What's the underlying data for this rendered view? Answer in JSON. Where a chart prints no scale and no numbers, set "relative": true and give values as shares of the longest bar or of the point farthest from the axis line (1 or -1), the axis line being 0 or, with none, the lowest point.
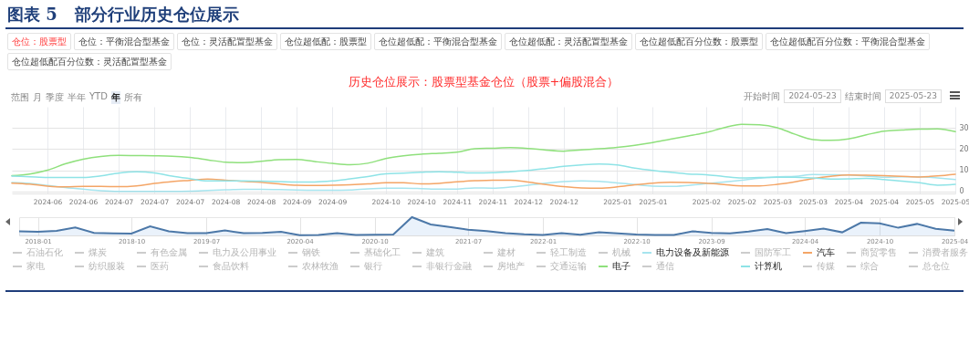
{
  "chart_data": [
    {
      "type": "line",
      "title": "图表 5   部分行业历史仓位展示",
      "subtitle": "历史仓位展示：股票型基金仓位（股票+偏股混合）",
      "annotations": [
        "仓位：股票型",
        "仓位：平衡混合型基金",
        "仓位：灵活配置型基金",
        "仓位超低配：股票型",
        "仓位超低配：平衡混合型基金",
        "仓位超低配：灵活配置型基金",
        "仓位超低配百分位数：股票型",
        "仓位超低配百分位数：平衡混合型基金",
        "仓位超低配百分位数：灵活配置型基金",
        "范围",
        "月",
        "季度",
        "半年",
        "YTD",
        "年",
        "所有",
        "开始时间",
        "2024-05-23",
        "结束时间",
        "2025-05-23"
      ],
      "categories": [
        null,
        null,
        "2024-06",
        null,
        "2024-06",
        null,
        "2024-07",
        null,
        "2024-07",
        null,
        "2024-07",
        null,
        "2024-08",
        null,
        "2024-08",
        null,
        "2024-09",
        null,
        "2024-09",
        null,
        null,
        "2024-10",
        null,
        "2024-10",
        null,
        "2024-11",
        null,
        "2024-11",
        null,
        "2024-12",
        null,
        "2024-12",
        null,
        null,
        "2025-01",
        null,
        "2025-01",
        null,
        null,
        "2025-02",
        null,
        "2025-02",
        null,
        "2025-03",
        null,
        "2025-03",
        null,
        "2025-04",
        null,
        "2025-04",
        null,
        "2025-05",
        null,
        "2025-05"
      ],
      "ylim": [
        -1,
        40
      ],
      "yticks": [
        0,
        10,
        20,
        30
      ],
      "grid": true,
      "legend": "bottom",
      "series": [
        {
          "name": "石油石化",
          "color": "#cccccc",
          "values": [
            null,
            null,
            null,
            null,
            null,
            null,
            null,
            null,
            null,
            null,
            null,
            null,
            null,
            null,
            null,
            null,
            null,
            null,
            null,
            null,
            null,
            null,
            null,
            null,
            null,
            null,
            null,
            null,
            null,
            null,
            null,
            null,
            null,
            null,
            null,
            null,
            null,
            null,
            null,
            null,
            null,
            null,
            null,
            null,
            null,
            null,
            null,
            null,
            null,
            null,
            null,
            null,
            null,
            null
          ]
        },
        {
          "name": "煤炭",
          "color": "#cccccc",
          "values": [
            null,
            null,
            null,
            null,
            null,
            null,
            null,
            null,
            null,
            null,
            null,
            null,
            null,
            null,
            null,
            null,
            null,
            null,
            null,
            null,
            null,
            null,
            null,
            null,
            null,
            null,
            null,
            null,
            null,
            null,
            null,
            null,
            null,
            null,
            null,
            null,
            null,
            null,
            null,
            null,
            null,
            null,
            null,
            null,
            null,
            null,
            null,
            null,
            null,
            null,
            null,
            null,
            null,
            null
          ]
        },
        {
          "name": "有色金属",
          "color": "#cccccc",
          "values": [
            null,
            null,
            null,
            null,
            null,
            null,
            null,
            null,
            null,
            null,
            null,
            null,
            null,
            null,
            null,
            null,
            null,
            null,
            null,
            null,
            null,
            null,
            null,
            null,
            null,
            null,
            null,
            null,
            null,
            null,
            null,
            null,
            null,
            null,
            null,
            null,
            null,
            null,
            null,
            null,
            null,
            null,
            null,
            null,
            null,
            null,
            null,
            null,
            null,
            null,
            null,
            null,
            null,
            null
          ]
        },
        {
          "name": "电力及公用事业",
          "color": "#cccccc",
          "values": [
            null,
            null,
            null,
            null,
            null,
            null,
            null,
            null,
            null,
            null,
            null,
            null,
            null,
            null,
            null,
            null,
            null,
            null,
            null,
            null,
            null,
            null,
            null,
            null,
            null,
            null,
            null,
            null,
            null,
            null,
            null,
            null,
            null,
            null,
            null,
            null,
            null,
            null,
            null,
            null,
            null,
            null,
            null,
            null,
            null,
            null,
            null,
            null,
            null,
            null,
            null,
            null,
            null,
            null
          ]
        },
        {
          "name": "钢铁",
          "color": "#cccccc",
          "values": [
            null,
            null,
            null,
            null,
            null,
            null,
            null,
            null,
            null,
            null,
            null,
            null,
            null,
            null,
            null,
            null,
            null,
            null,
            null,
            null,
            null,
            null,
            null,
            null,
            null,
            null,
            null,
            null,
            null,
            null,
            null,
            null,
            null,
            null,
            null,
            null,
            null,
            null,
            null,
            null,
            null,
            null,
            null,
            null,
            null,
            null,
            null,
            null,
            null,
            null,
            null,
            null,
            null,
            null
          ]
        },
        {
          "name": "基础化工",
          "color": "#cccccc",
          "values": [
            null,
            null,
            null,
            null,
            null,
            null,
            null,
            null,
            null,
            null,
            null,
            null,
            null,
            null,
            null,
            null,
            null,
            null,
            null,
            null,
            null,
            null,
            null,
            null,
            null,
            null,
            null,
            null,
            null,
            null,
            null,
            null,
            null,
            null,
            null,
            null,
            null,
            null,
            null,
            null,
            null,
            null,
            null,
            null,
            null,
            null,
            null,
            null,
            null,
            null,
            null,
            null,
            null,
            null
          ]
        },
        {
          "name": "建筑",
          "color": "#cccccc",
          "values": [
            null,
            null,
            null,
            null,
            null,
            null,
            null,
            null,
            null,
            null,
            null,
            null,
            null,
            null,
            null,
            null,
            null,
            null,
            null,
            null,
            null,
            null,
            null,
            null,
            null,
            null,
            null,
            null,
            null,
            null,
            null,
            null,
            null,
            null,
            null,
            null,
            null,
            null,
            null,
            null,
            null,
            null,
            null,
            null,
            null,
            null,
            null,
            null,
            null,
            null,
            null,
            null,
            null,
            null
          ]
        },
        {
          "name": "建材",
          "color": "#cccccc",
          "values": [
            null,
            null,
            null,
            null,
            null,
            null,
            null,
            null,
            null,
            null,
            null,
            null,
            null,
            null,
            null,
            null,
            null,
            null,
            null,
            null,
            null,
            null,
            null,
            null,
            null,
            null,
            null,
            null,
            null,
            null,
            null,
            null,
            null,
            null,
            null,
            null,
            null,
            null,
            null,
            null,
            null,
            null,
            null,
            null,
            null,
            null,
            null,
            null,
            null,
            null,
            null,
            null,
            null,
            null
          ]
        },
        {
          "name": "轻工制造",
          "color": "#cccccc",
          "values": [
            null,
            null,
            null,
            null,
            null,
            null,
            null,
            null,
            null,
            null,
            null,
            null,
            null,
            null,
            null,
            null,
            null,
            null,
            null,
            null,
            null,
            null,
            null,
            null,
            null,
            null,
            null,
            null,
            null,
            null,
            null,
            null,
            null,
            null,
            null,
            null,
            null,
            null,
            null,
            null,
            null,
            null,
            null,
            null,
            null,
            null,
            null,
            null,
            null,
            null,
            null,
            null,
            null,
            null
          ]
        },
        {
          "name": "机械",
          "color": "#cccccc",
          "values": [
            null,
            null,
            null,
            null,
            null,
            null,
            null,
            null,
            null,
            null,
            null,
            null,
            null,
            null,
            null,
            null,
            null,
            null,
            null,
            null,
            null,
            null,
            null,
            null,
            null,
            null,
            null,
            null,
            null,
            null,
            null,
            null,
            null,
            null,
            null,
            null,
            null,
            null,
            null,
            null,
            null,
            null,
            null,
            null,
            null,
            null,
            null,
            null,
            null,
            null,
            null,
            null,
            null,
            null
          ]
        },
        {
          "name": "电力设备及新能源",
          "color": "#a6e4ee",
          "values": [
            4.2,
            3.8,
            2.8,
            1.8,
            1.0,
            0.3,
            0,
            0,
            0,
            0,
            0.1,
            0.4,
            0.7,
            0.9,
            0.9,
            0.8,
            0.6,
            0.5,
            0.5,
            0.6,
            1.2,
            1.5,
            1.5,
            1.3,
            1.0,
            1.1,
            1.6,
            1.5,
            2.0,
            2.9,
            3.9,
            4.6,
            4.9,
            4.7,
            4.0,
            3.2,
            2.5,
            2.3,
            2.8,
            3.6,
            4.4,
            5.3,
            6.2,
            6.9,
            7.1,
            8.0,
            7.9,
            7.7,
            7.2,
            6.7,
            6.9,
            6.9,
            6.3,
            5.6
          ]
        },
        {
          "name": "国防军工",
          "color": "#cccccc",
          "values": [
            null,
            null,
            null,
            null,
            null,
            null,
            null,
            null,
            null,
            null,
            null,
            null,
            null,
            null,
            null,
            null,
            null,
            null,
            null,
            null,
            null,
            null,
            null,
            null,
            null,
            null,
            null,
            null,
            null,
            null,
            null,
            null,
            null,
            null,
            null,
            null,
            null,
            null,
            null,
            null,
            null,
            null,
            null,
            null,
            null,
            null,
            null,
            null,
            null,
            null,
            null,
            null,
            null,
            null
          ]
        },
        {
          "name": "汽车",
          "color": "#f4a566",
          "values": [
            3.9,
            3.4,
            2.5,
            2.1,
            2.3,
            2.3,
            2.2,
            2.6,
            3.7,
            4.6,
            5.2,
            5.8,
            5.3,
            4.7,
            4.3,
            3.5,
            2.9,
            2.8,
            2.9,
            3.1,
            3.5,
            4.1,
            4.1,
            3.5,
            3.8,
            4.5,
            5.0,
            5.3,
            5.3,
            4.4,
            3.2,
            2.2,
            1.6,
            1.5,
            2.1,
            3.1,
            3.9,
            4.3,
            4.2,
            3.9,
            3.2,
            2.6,
            2.6,
            3.3,
            4.5,
            6.0,
            7.1,
            7.7,
            7.6,
            7.4,
            7.1,
            6.8,
            7.3,
            8.1
          ]
        },
        {
          "name": "商贸零售",
          "color": "#cccccc",
          "values": [
            null,
            null,
            null,
            null,
            null,
            null,
            null,
            null,
            null,
            null,
            null,
            null,
            null,
            null,
            null,
            null,
            null,
            null,
            null,
            null,
            null,
            null,
            null,
            null,
            null,
            null,
            null,
            null,
            null,
            null,
            null,
            null,
            null,
            null,
            null,
            null,
            null,
            null,
            null,
            null,
            null,
            null,
            null,
            null,
            null,
            null,
            null,
            null,
            null,
            null,
            null,
            null,
            null,
            null
          ]
        },
        {
          "name": "消费者服务",
          "color": "#cccccc",
          "values": [
            null,
            null,
            null,
            null,
            null,
            null,
            null,
            null,
            null,
            null,
            null,
            null,
            null,
            null,
            null,
            null,
            null,
            null,
            null,
            null,
            null,
            null,
            null,
            null,
            null,
            null,
            null,
            null,
            null,
            null,
            null,
            null,
            null,
            null,
            null,
            null,
            null,
            null,
            null,
            null,
            null,
            null,
            null,
            null,
            null,
            null,
            null,
            null,
            null,
            null,
            null,
            null,
            null,
            null
          ]
        },
        {
          "name": "家电",
          "color": "#cccccc",
          "values": [
            null,
            null,
            null,
            null,
            null,
            null,
            null,
            null,
            null,
            null,
            null,
            null,
            null,
            null,
            null,
            null,
            null,
            null,
            null,
            null,
            null,
            null,
            null,
            null,
            null,
            null,
            null,
            null,
            null,
            null,
            null,
            null,
            null,
            null,
            null,
            null,
            null,
            null,
            null,
            null,
            null,
            null,
            null,
            null,
            null,
            null,
            null,
            null,
            null,
            null,
            null,
            null,
            null,
            null
          ]
        },
        {
          "name": "纺织服装",
          "color": "#cccccc",
          "values": [
            null,
            null,
            null,
            null,
            null,
            null,
            null,
            null,
            null,
            null,
            null,
            null,
            null,
            null,
            null,
            null,
            null,
            null,
            null,
            null,
            null,
            null,
            null,
            null,
            null,
            null,
            null,
            null,
            null,
            null,
            null,
            null,
            null,
            null,
            null,
            null,
            null,
            null,
            null,
            null,
            null,
            null,
            null,
            null,
            null,
            null,
            null,
            null,
            null,
            null,
            null,
            null,
            null,
            null
          ]
        },
        {
          "name": "医药",
          "color": "#cccccc",
          "values": [
            null,
            null,
            null,
            null,
            null,
            null,
            null,
            null,
            null,
            null,
            null,
            null,
            null,
            null,
            null,
            null,
            null,
            null,
            null,
            null,
            null,
            null,
            null,
            null,
            null,
            null,
            null,
            null,
            null,
            null,
            null,
            null,
            null,
            null,
            null,
            null,
            null,
            null,
            null,
            null,
            null,
            null,
            null,
            null,
            null,
            null,
            null,
            null,
            null,
            null,
            null,
            null,
            null,
            null
          ]
        },
        {
          "name": "食品饮料",
          "color": "#cccccc",
          "values": [
            null,
            null,
            null,
            null,
            null,
            null,
            null,
            null,
            null,
            null,
            null,
            null,
            null,
            null,
            null,
            null,
            null,
            null,
            null,
            null,
            null,
            null,
            null,
            null,
            null,
            null,
            null,
            null,
            null,
            null,
            null,
            null,
            null,
            null,
            null,
            null,
            null,
            null,
            null,
            null,
            null,
            null,
            null,
            null,
            null,
            null,
            null,
            null,
            null,
            null,
            null,
            null,
            null,
            null
          ]
        },
        {
          "name": "农林牧渔",
          "color": "#cccccc",
          "values": [
            null,
            null,
            null,
            null,
            null,
            null,
            null,
            null,
            null,
            null,
            null,
            null,
            null,
            null,
            null,
            null,
            null,
            null,
            null,
            null,
            null,
            null,
            null,
            null,
            null,
            null,
            null,
            null,
            null,
            null,
            null,
            null,
            null,
            null,
            null,
            null,
            null,
            null,
            null,
            null,
            null,
            null,
            null,
            null,
            null,
            null,
            null,
            null,
            null,
            null,
            null,
            null,
            null,
            null
          ]
        },
        {
          "name": "银行",
          "color": "#cccccc",
          "values": [
            null,
            null,
            null,
            null,
            null,
            null,
            null,
            null,
            null,
            null,
            null,
            null,
            null,
            null,
            null,
            null,
            null,
            null,
            null,
            null,
            null,
            null,
            null,
            null,
            null,
            null,
            null,
            null,
            null,
            null,
            null,
            null,
            null,
            null,
            null,
            null,
            null,
            null,
            null,
            null,
            null,
            null,
            null,
            null,
            null,
            null,
            null,
            null,
            null,
            null,
            null,
            null,
            null,
            null
          ]
        },
        {
          "name": "非银行金融",
          "color": "#cccccc",
          "values": [
            null,
            null,
            null,
            null,
            null,
            null,
            null,
            null,
            null,
            null,
            null,
            null,
            null,
            null,
            null,
            null,
            null,
            null,
            null,
            null,
            null,
            null,
            null,
            null,
            null,
            null,
            null,
            null,
            null,
            null,
            null,
            null,
            null,
            null,
            null,
            null,
            null,
            null,
            null,
            null,
            null,
            null,
            null,
            null,
            null,
            null,
            null,
            null,
            null,
            null,
            null,
            null,
            null,
            null
          ]
        },
        {
          "name": "房地产",
          "color": "#cccccc",
          "values": [
            null,
            null,
            null,
            null,
            null,
            null,
            null,
            null,
            null,
            null,
            null,
            null,
            null,
            null,
            null,
            null,
            null,
            null,
            null,
            null,
            null,
            null,
            null,
            null,
            null,
            null,
            null,
            null,
            null,
            null,
            null,
            null,
            null,
            null,
            null,
            null,
            null,
            null,
            null,
            null,
            null,
            null,
            null,
            null,
            null,
            null,
            null,
            null,
            null,
            null,
            null,
            null,
            null,
            null
          ]
        },
        {
          "name": "交通运输",
          "color": "#cccccc",
          "values": [
            null,
            null,
            null,
            null,
            null,
            null,
            null,
            null,
            null,
            null,
            null,
            null,
            null,
            null,
            null,
            null,
            null,
            null,
            null,
            null,
            null,
            null,
            null,
            null,
            null,
            null,
            null,
            null,
            null,
            null,
            null,
            null,
            null,
            null,
            null,
            null,
            null,
            null,
            null,
            null,
            null,
            null,
            null,
            null,
            null,
            null,
            null,
            null,
            null,
            null,
            null,
            null,
            null,
            null
          ]
        },
        {
          "name": "电子",
          "color": "#8fe07c",
          "values": [
            7.4,
            8.2,
            10.0,
            13.0,
            15.2,
            16.5,
            17.0,
            16.9,
            16.8,
            16.6,
            16.0,
            14.9,
            13.8,
            13.6,
            14.2,
            15.0,
            15.1,
            14.1,
            13.2,
            12.6,
            13.3,
            15.5,
            16.8,
            17.6,
            18.0,
            18.5,
            20.1,
            20.4,
            20.7,
            20.3,
            19.5,
            19.0,
            19.6,
            20.1,
            20.8,
            21.8,
            23.1,
            24.7,
            26.2,
            27.8,
            30.1,
            31.7,
            31.5,
            30.1,
            27.0,
            24.5,
            24.1,
            24.8,
            26.7,
            28.5,
            29.0,
            29.4,
            29.5,
            28.2
          ]
        },
        {
          "name": "通信",
          "color": "#cccccc",
          "values": [
            null,
            null,
            null,
            null,
            null,
            null,
            null,
            null,
            null,
            null,
            null,
            null,
            null,
            null,
            null,
            null,
            null,
            null,
            null,
            null,
            null,
            null,
            null,
            null,
            null,
            null,
            null,
            null,
            null,
            null,
            null,
            null,
            null,
            null,
            null,
            null,
            null,
            null,
            null,
            null,
            null,
            null,
            null,
            null,
            null,
            null,
            null,
            null,
            null,
            null,
            null,
            null,
            null,
            null
          ]
        },
        {
          "name": "计算机",
          "color": "#8ee3e6",
          "values": [
            7.2,
            6.9,
            6.6,
            6.5,
            6.5,
            7.3,
            8.6,
            9.2,
            8.7,
            7.2,
            6.0,
            4.9,
            4.9,
            4.9,
            4.8,
            4.6,
            4.4,
            4.4,
            4.9,
            5.9,
            7.0,
            8.3,
            8.6,
            9.0,
            9.3,
            9.0,
            8.7,
            8.8,
            9.3,
            9.9,
            10.8,
            11.8,
            12.5,
            12.9,
            12.5,
            11.0,
            9.9,
            9.0,
            8.2,
            7.9,
            7.0,
            6.3,
            6.5,
            6.7,
            6.7,
            6.3,
            5.8,
            5.9,
            6.1,
            5.6,
            4.8,
            4.1,
            2.9,
            3.3
          ]
        },
        {
          "name": "传媒",
          "color": "#cccccc",
          "values": [
            null,
            null,
            null,
            null,
            null,
            null,
            null,
            null,
            null,
            null,
            null,
            null,
            null,
            null,
            null,
            null,
            null,
            null,
            null,
            null,
            null,
            null,
            null,
            null,
            null,
            null,
            null,
            null,
            null,
            null,
            null,
            null,
            null,
            null,
            null,
            null,
            null,
            null,
            null,
            null,
            null,
            null,
            null,
            null,
            null,
            null,
            null,
            null,
            null,
            null,
            null,
            null,
            null,
            null
          ]
        },
        {
          "name": "综合",
          "color": "#cccccc",
          "values": [
            null,
            null,
            null,
            null,
            null,
            null,
            null,
            null,
            null,
            null,
            null,
            null,
            null,
            null,
            null,
            null,
            null,
            null,
            null,
            null,
            null,
            null,
            null,
            null,
            null,
            null,
            null,
            null,
            null,
            null,
            null,
            null,
            null,
            null,
            null,
            null,
            null,
            null,
            null,
            null,
            null,
            null,
            null,
            null,
            null,
            null,
            null,
            null,
            null,
            null,
            null,
            null,
            null,
            null
          ]
        },
        {
          "name": "总仓位",
          "color": "#cccccc",
          "values": [
            null,
            null,
            null,
            null,
            null,
            null,
            null,
            null,
            null,
            null,
            null,
            null,
            null,
            null,
            null,
            null,
            null,
            null,
            null,
            null,
            null,
            null,
            null,
            null,
            null,
            null,
            null,
            null,
            null,
            null,
            null,
            null,
            null,
            null,
            null,
            null,
            null,
            null,
            null,
            null,
            null,
            null,
            null,
            null,
            null,
            null,
            null,
            null,
            null,
            null,
            null,
            null,
            null,
            null
          ]
        }
      ]
    },
    {
      "type": "area",
      "relative": true,
      "grid": "x",
      "color": "#8db8e8",
      "categories": [
        null,
        "2018-01",
        null,
        null,
        null,
        null,
        "2018-10",
        null,
        null,
        null,
        "2019-07",
        null,
        null,
        null,
        null,
        "2020-04",
        null,
        null,
        null,
        "2020-10",
        null,
        null,
        null,
        null,
        "2021-07",
        null,
        null,
        null,
        "2022-01",
        null,
        null,
        null,
        null,
        "2022-10",
        null,
        null,
        null,
        "2023-09",
        null,
        null,
        null,
        null,
        "2024-04",
        null,
        null,
        null,
        "2024-10",
        null,
        null,
        null,
        "2025-04"
      ],
      "values": [
        0.23,
        0.2,
        0.25,
        0.44,
        0.14,
        0.11,
        0.1,
        0.5,
        0.23,
        0.13,
        0.12,
        0.27,
        0.12,
        0.14,
        0.2,
        0.01,
        0.03,
        0.12,
        0.02,
        0.04,
        0.05,
        1.0,
        0.6,
        0.46,
        0.31,
        0.24,
        0.12,
        0.06,
        0.03,
        0.12,
        0.04,
        0.18,
        0.11,
        0.05,
        0.03,
        0.02,
        0.23,
        0.14,
        0.11,
        0.21,
        0.35,
        0.12,
        0.24,
        0.37,
        0.17,
        0.7,
        0.66,
        0.42,
        0.63,
        0.36,
        0.26
      ]
    }
  ]
}
